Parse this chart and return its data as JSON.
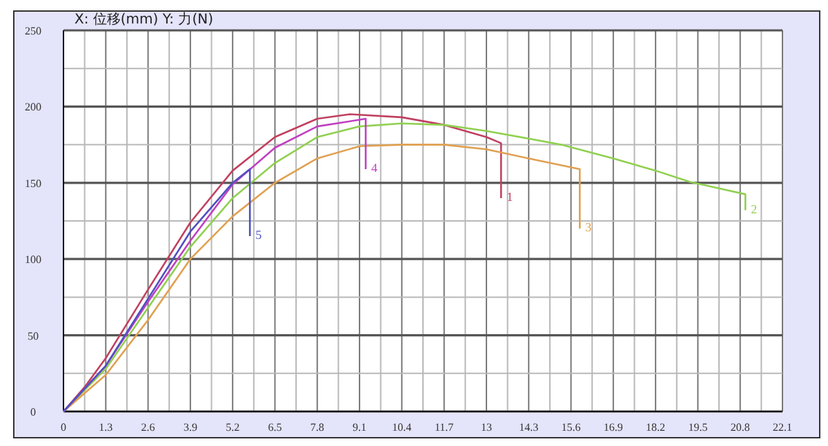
{
  "chart_data": {
    "type": "line",
    "title": "X: 位移(mm)   Y: 力(N)",
    "xlim": [
      0,
      22.1
    ],
    "ylim": [
      0,
      250
    ],
    "xticks": [
      0,
      {
        "value": 0.65,
        "label": null
      },
      1.3,
      {
        "value": 1.95,
        "label": null
      },
      2.6,
      {
        "value": 3.25,
        "label": null
      },
      3.9,
      {
        "value": 4.55,
        "label": null
      },
      5.2,
      {
        "value": 5.85,
        "label": null
      },
      6.5,
      {
        "value": 7.15,
        "label": null
      },
      7.8,
      {
        "value": 8.45,
        "label": null
      },
      9.1,
      {
        "value": 9.75,
        "label": null
      },
      10.4,
      {
        "value": 11.05,
        "label": null
      },
      11.7,
      {
        "value": 12.35,
        "label": null
      },
      13,
      {
        "value": 13.65,
        "label": null
      },
      14.3,
      {
        "value": 14.95,
        "label": null
      },
      15.6,
      {
        "value": 16.25,
        "label": null
      },
      16.9,
      {
        "value": 17.55,
        "label": null
      },
      18.2,
      {
        "value": 18.85,
        "label": null
      },
      19.5,
      {
        "value": 20.15,
        "label": null
      },
      20.8,
      {
        "value": 21.45,
        "label": null
      },
      22.1
    ],
    "yticks": [
      0,
      {
        "value": 25,
        "label": null
      },
      50,
      {
        "value": 75,
        "label": null
      },
      100,
      {
        "value": 125,
        "label": null
      },
      150,
      {
        "value": 175,
        "label": null
      },
      200,
      {
        "value": 225,
        "label": null
      },
      250
    ],
    "grid": true,
    "marker": "none",
    "line_style": "solid",
    "series": [
      {
        "name": "1",
        "color": "#c04060",
        "x": [
          0,
          0.65,
          1.3,
          2.6,
          3.9,
          5.2,
          6.5,
          7.8,
          8.8,
          10.4,
          11.7,
          13,
          13.45,
          13.45
        ],
        "values": [
          0,
          16,
          35,
          80,
          124,
          158,
          180,
          192,
          195,
          193,
          188,
          180,
          176,
          140
        ]
      },
      {
        "name": "2",
        "color": "#90d050",
        "x": [
          0,
          1.3,
          2.6,
          3.9,
          5.2,
          6.5,
          7.8,
          9.1,
          10.4,
          11.7,
          13,
          14.3,
          15.3,
          16.9,
          18.2,
          19.26,
          20.96,
          20.96
        ],
        "values": [
          0,
          28,
          68,
          108,
          140,
          163,
          180,
          187,
          189,
          188,
          184,
          179,
          175,
          166,
          158,
          150.6,
          142.5,
          132
        ]
      },
      {
        "name": "3",
        "color": "#e0a050",
        "x": [
          0,
          1.3,
          2.6,
          3.9,
          5.2,
          6.5,
          7.8,
          9.1,
          10.4,
          11.7,
          13,
          14.3,
          15.87,
          15.87
        ],
        "values": [
          0,
          24,
          60,
          100,
          128,
          150,
          166,
          174,
          175,
          175,
          172,
          166,
          159,
          120
        ]
      },
      {
        "name": "4",
        "color": "#c040c0",
        "x": [
          0,
          1.3,
          2.6,
          3.9,
          5.2,
          6.5,
          7.8,
          9.29,
          9.29
        ],
        "values": [
          0,
          30,
          72,
          112,
          149,
          173,
          187,
          192,
          159
        ]
      },
      {
        "name": "5",
        "color": "#5050c0",
        "x": [
          0,
          1.3,
          2.6,
          3.9,
          5.2,
          5.73,
          5.73
        ],
        "values": [
          0,
          30,
          74,
          118,
          150,
          159,
          115
        ]
      }
    ]
  }
}
